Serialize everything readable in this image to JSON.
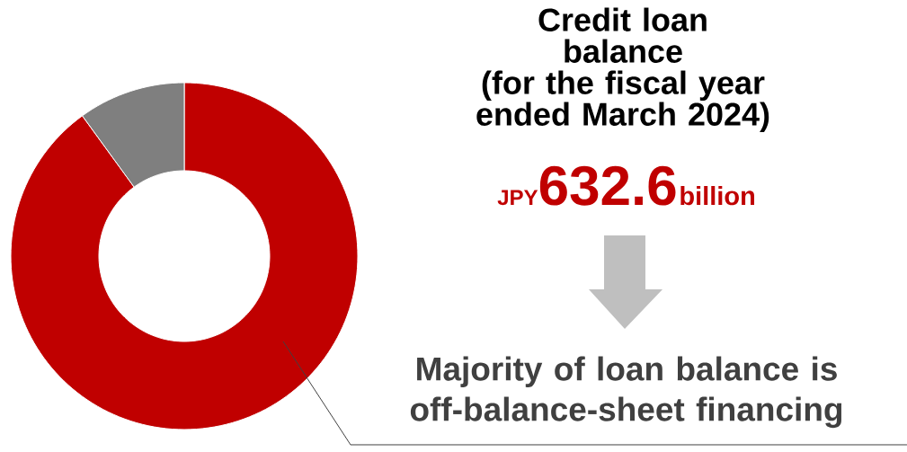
{
  "chart_data": {
    "type": "donut",
    "title": "Credit loan balance",
    "subtitle": "(for the fiscal year ended March 2024)",
    "categories": [
      null,
      null
    ],
    "values": [
      90,
      10
    ],
    "colors": [
      "#c00000",
      "#7f7f7f"
    ],
    "annotations": [
      "JPY",
      "632.6",
      "billion",
      "Majority of loan balance is off-balance-sheet financing"
    ]
  }
}
